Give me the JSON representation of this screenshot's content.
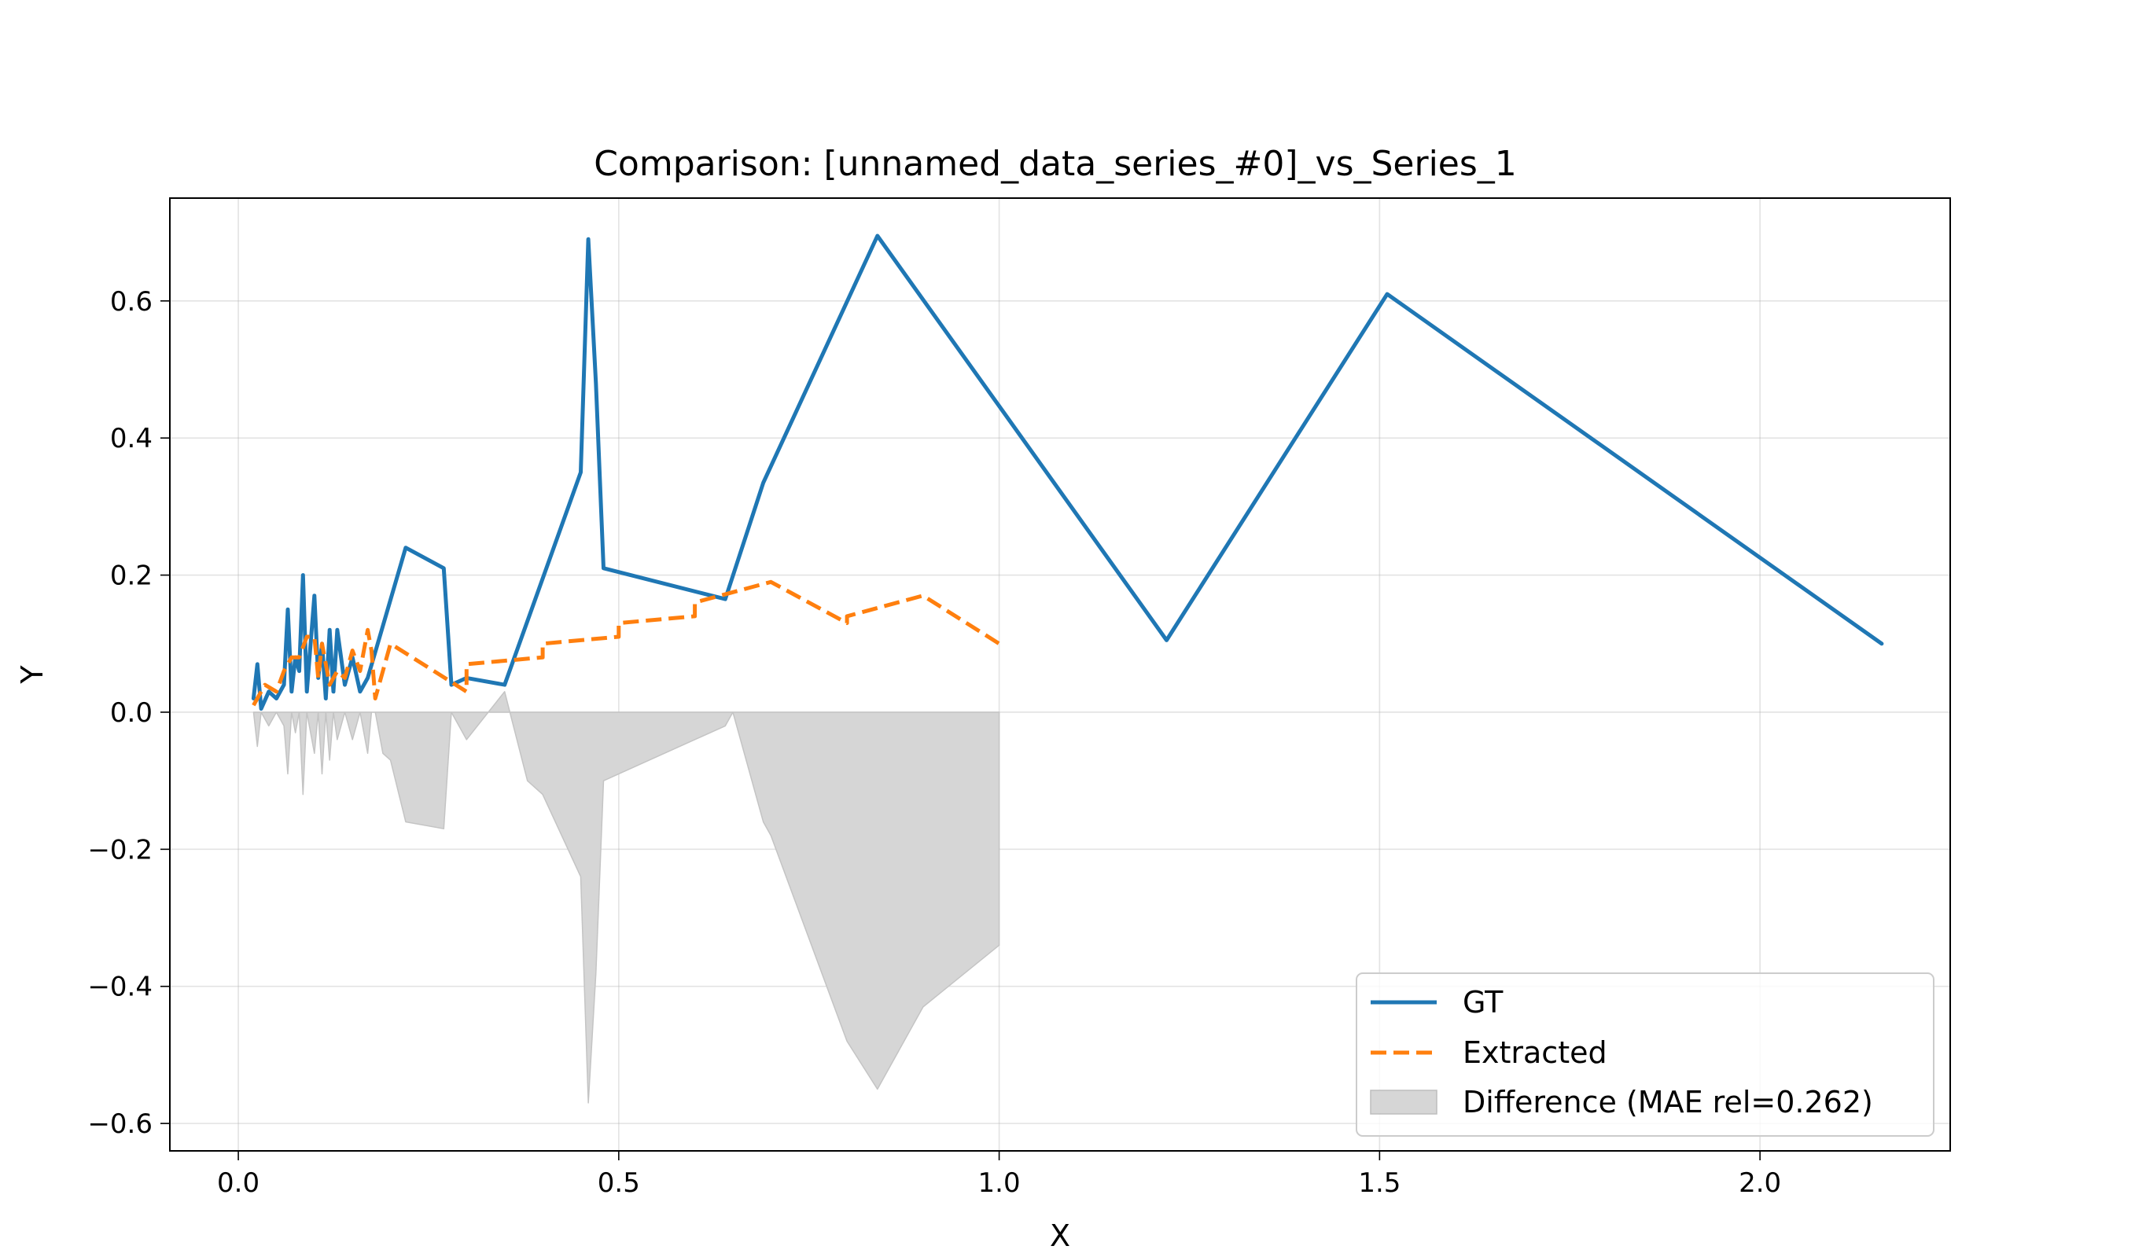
{
  "chart_data": {
    "type": "line",
    "title": "Comparison: [unnamed_data_series_#0]_vs_Series_1",
    "xlabel": "X",
    "ylabel": "Y",
    "xlim": [
      -0.09,
      2.25
    ],
    "ylim": [
      -0.64,
      0.75
    ],
    "grid": true,
    "legend_position": "lower-right",
    "x_ticks": [
      0.0,
      0.5,
      1.0,
      1.5,
      2.0
    ],
    "x_tick_labels": [
      "0.0",
      "0.5",
      "1.0",
      "1.5",
      "2.0"
    ],
    "y_ticks": [
      -0.6,
      -0.4,
      -0.2,
      0.0,
      0.2,
      0.4,
      0.6
    ],
    "y_tick_labels": [
      "−0.6",
      "−0.4",
      "−0.2",
      "0.0",
      "0.2",
      "0.4",
      "0.6"
    ],
    "series": [
      {
        "name": "GT",
        "color": "#1f77b4",
        "style": "solid",
        "x": [
          0.02,
          0.025,
          0.03,
          0.04,
          0.05,
          0.06,
          0.065,
          0.07,
          0.075,
          0.08,
          0.085,
          0.09,
          0.1,
          0.105,
          0.11,
          0.115,
          0.12,
          0.125,
          0.13,
          0.14,
          0.15,
          0.16,
          0.17,
          0.22,
          0.27,
          0.28,
          0.3,
          0.35,
          0.45,
          0.46,
          0.47,
          0.48,
          0.64,
          0.69,
          0.84,
          1.22,
          1.51,
          2.16
        ],
        "y": [
          0.02,
          0.07,
          0.005,
          0.03,
          0.02,
          0.04,
          0.15,
          0.03,
          0.08,
          0.06,
          0.2,
          0.03,
          0.17,
          0.05,
          0.1,
          0.02,
          0.12,
          0.03,
          0.12,
          0.04,
          0.08,
          0.03,
          0.05,
          0.24,
          0.21,
          0.04,
          0.05,
          0.04,
          0.35,
          0.69,
          0.48,
          0.21,
          0.165,
          0.335,
          0.695,
          0.105,
          0.61,
          0.1
        ]
      },
      {
        "name": "Extracted",
        "color": "#ff7f0e",
        "style": "dashed",
        "x": [
          0.02,
          0.035,
          0.05,
          0.06,
          0.07,
          0.08,
          0.09,
          0.1,
          0.105,
          0.11,
          0.12,
          0.13,
          0.14,
          0.15,
          0.16,
          0.17,
          0.175,
          0.18,
          0.2,
          0.3,
          0.3,
          0.4,
          0.4,
          0.5,
          0.5,
          0.6,
          0.6,
          0.7,
          0.8,
          0.8,
          0.9,
          1.0
        ],
        "y": [
          0.01,
          0.04,
          0.03,
          0.06,
          0.08,
          0.08,
          0.11,
          0.11,
          0.05,
          0.1,
          0.04,
          0.06,
          0.05,
          0.09,
          0.06,
          0.12,
          0.09,
          0.02,
          0.1,
          0.03,
          0.07,
          0.08,
          0.1,
          0.11,
          0.13,
          0.14,
          0.16,
          0.19,
          0.13,
          0.14,
          0.17,
          0.1
        ]
      }
    ],
    "difference": {
      "label": "Difference (MAE rel=0.262)",
      "color": "#d6d6d6",
      "x": [
        0.02,
        0.025,
        0.03,
        0.04,
        0.05,
        0.06,
        0.065,
        0.07,
        0.075,
        0.08,
        0.085,
        0.09,
        0.1,
        0.105,
        0.11,
        0.115,
        0.12,
        0.125,
        0.13,
        0.14,
        0.15,
        0.16,
        0.17,
        0.175,
        0.18,
        0.19,
        0.2,
        0.22,
        0.27,
        0.28,
        0.3,
        0.35,
        0.38,
        0.4,
        0.45,
        0.46,
        0.47,
        0.48,
        0.5,
        0.6,
        0.64,
        0.65,
        0.69,
        0.7,
        0.8,
        0.84,
        0.9,
        1.0
      ],
      "y": [
        0.0,
        -0.05,
        0.0,
        -0.02,
        0.0,
        -0.02,
        -0.09,
        0.0,
        -0.03,
        0.0,
        -0.12,
        0.0,
        -0.06,
        0.0,
        -0.09,
        0.0,
        -0.07,
        0.0,
        -0.04,
        0.0,
        -0.04,
        0.0,
        -0.06,
        0.0,
        0.0,
        -0.06,
        -0.07,
        -0.16,
        -0.17,
        0.0,
        -0.04,
        0.03,
        -0.1,
        -0.12,
        -0.24,
        -0.57,
        -0.38,
        -0.1,
        -0.09,
        -0.04,
        -0.02,
        0.0,
        -0.16,
        -0.18,
        -0.48,
        -0.55,
        -0.43,
        -0.34
      ]
    }
  }
}
